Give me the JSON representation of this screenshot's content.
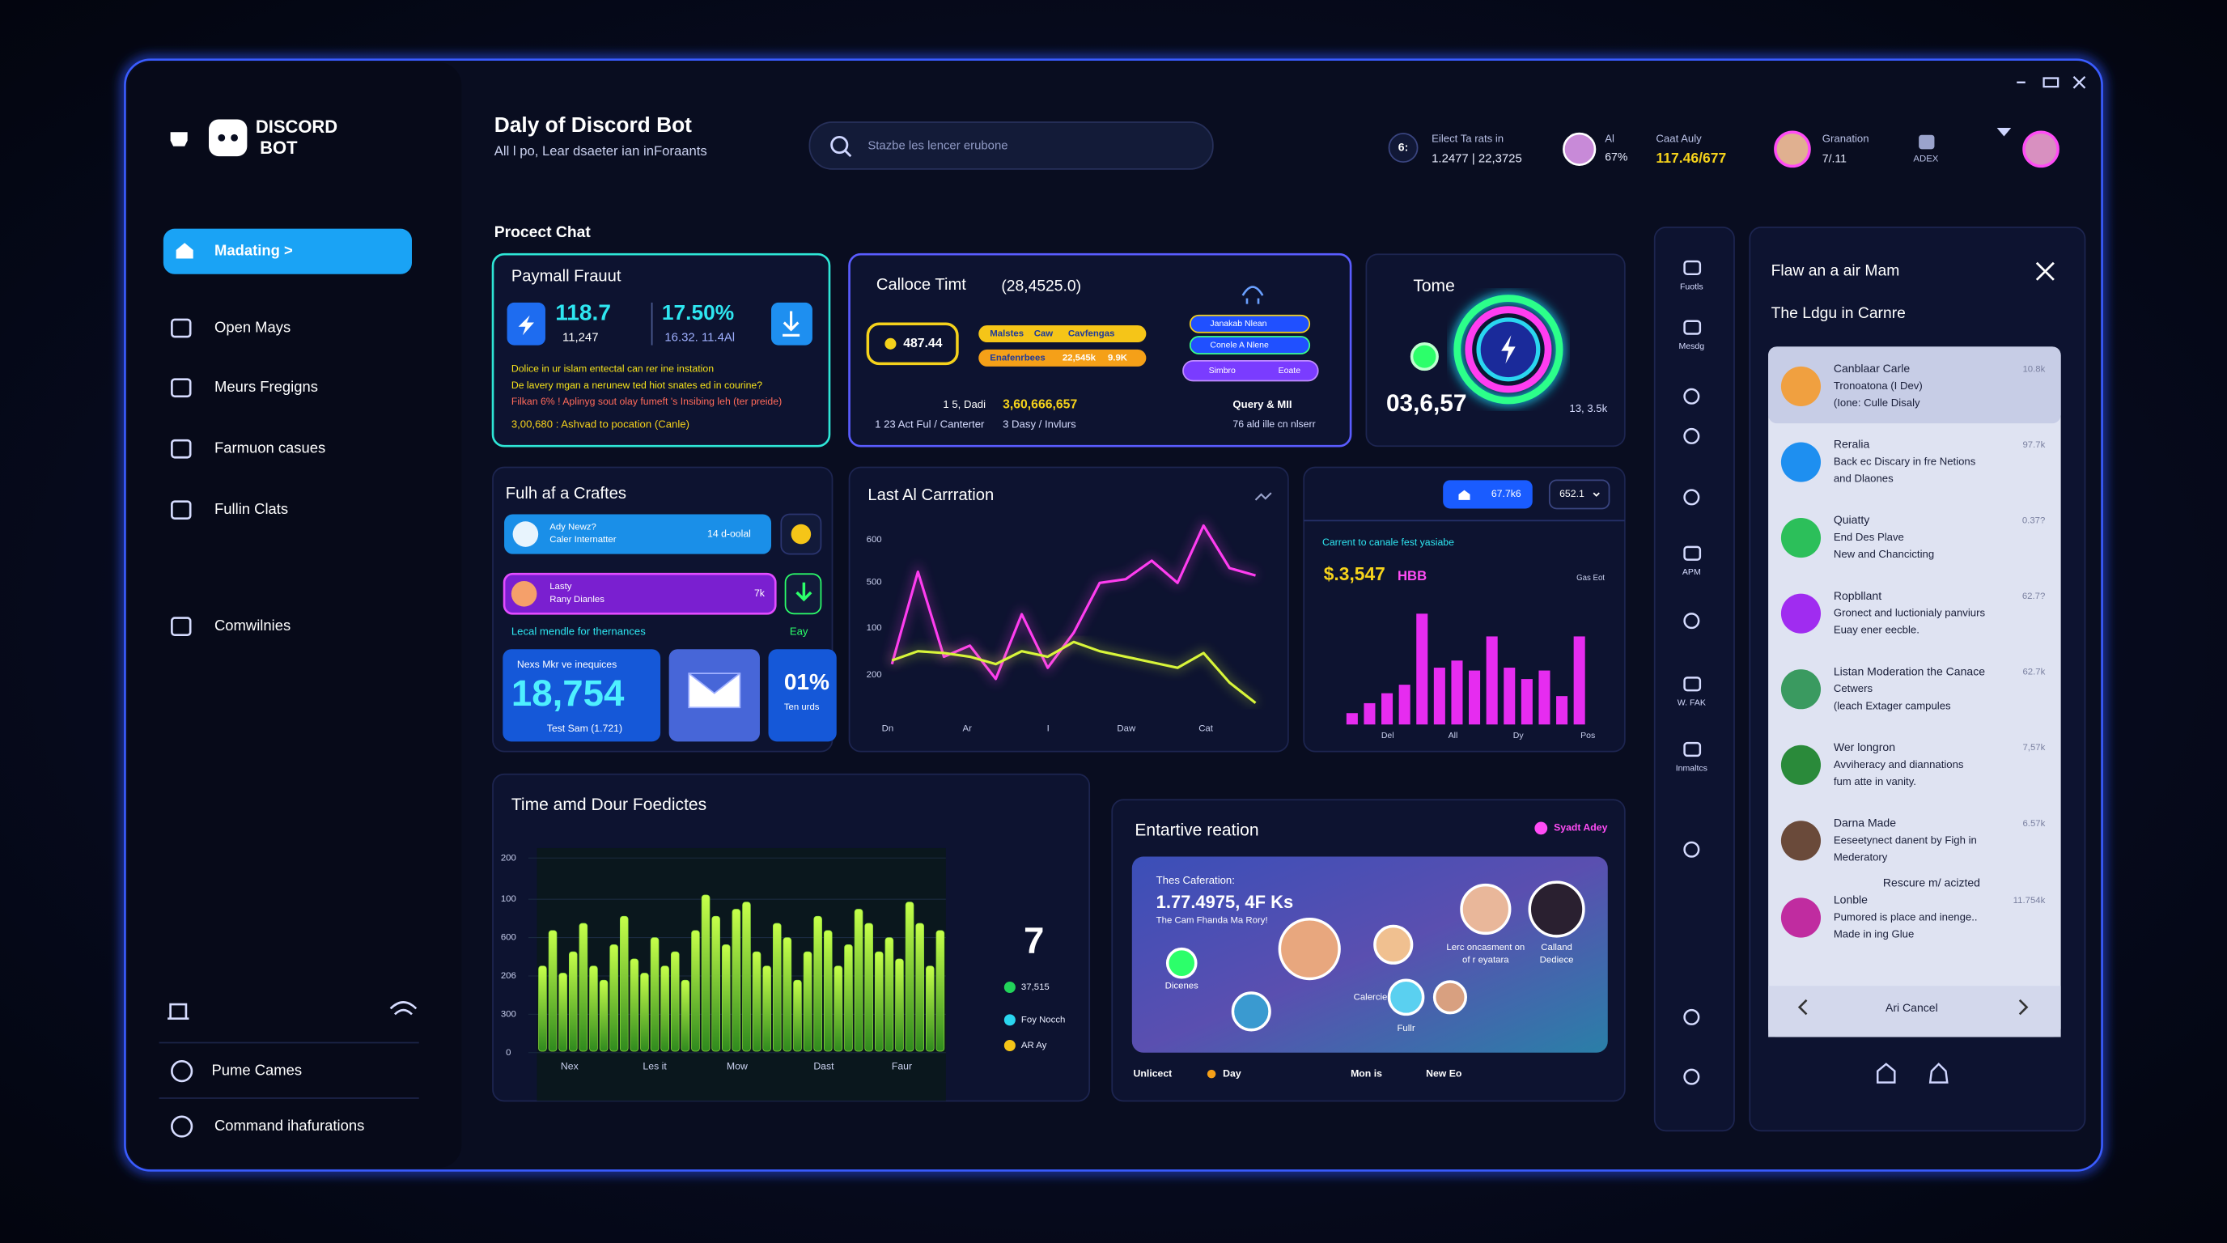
{
  "brand": {
    "line1": "DISCORD",
    "line2": "BOT"
  },
  "header": {
    "title": "Daly of Discord Bot",
    "subtitle": "All l po, Lear dsaeter ian inForaants",
    "search": "Stazbe les lencer erubone",
    "stats": [
      {
        "icon": "6:",
        "label": "Eilect Ta rats in",
        "value": "1.2477 | 22,3725"
      },
      {
        "label": "Al",
        "value": "67%"
      },
      {
        "label": "Caat Auly",
        "value": "117.46/677"
      },
      {
        "label": "Granation",
        "value": "7/.11"
      },
      {
        "label": "ADEX"
      }
    ]
  },
  "nav": {
    "items": [
      "Madating >",
      "Open Mays",
      "Meurs Fregigns",
      "Farmuon casues",
      "Fullin Clats",
      "Comwilnies"
    ],
    "footer": [
      "Pume Cames",
      "Command ihafurations"
    ]
  },
  "section": "Procect Chat",
  "payment_card": {
    "title": "Paymall Frauut",
    "metric1": "118.7",
    "metric1_sub": "11,247",
    "metric2": "17.50%",
    "metric2_sub": "16.32. 11.4Al",
    "lines": [
      "Dolice in ur islam entectal can rer ine instation",
      "De lavery mgan a nerunew ted hiot snates ed in courine?",
      "Filkan 6% ! Aplinyg sout olay fumeft 's Insibing leh (ter preide)"
    ],
    "footnote": "3,00,680 : Ashvad to pocation (Canle)"
  },
  "time_card": {
    "title": "Calloce Timt",
    "value": "(28,4525.0)",
    "pill": "487.44",
    "pills": [
      "Malstes",
      "Caw",
      "Cavfengas",
      "Enafenrbees",
      "22,545k",
      "9.9K"
    ],
    "right_pills": [
      "Janakab Nlean",
      "Conele A Nlene",
      "Simbro",
      "Eoate"
    ],
    "mid": "1 5, Dadi",
    "big": "3,60,666,657",
    "foot1": "1 23 Act Ful / Canterter",
    "foot2": "3 Dasy / Invlurs",
    "query": "Query & MII",
    "query_sub": "76 ald ille cn nlserr"
  },
  "tome_card": {
    "title": "Tome",
    "value": "03,6,57",
    "sub": "13, 3.5k"
  },
  "craft_card": {
    "title": "Fulh af a Craftes",
    "rows": [
      {
        "title": "Ady Newz?",
        "sub": "Caler Internatter",
        "value": "14 d-oolal"
      },
      {
        "title": "Lasty",
        "sub": "Rany Dianles",
        "value": "7k"
      }
    ],
    "caption": "Lecal mendle for thernances",
    "caption_right": "Eay",
    "box_label": "Nexs Mkr ve inequices",
    "box_value": "18,754",
    "box_sub": "Test Sam (1.721)",
    "small_value": "01%",
    "small_sub": "Ten urds"
  },
  "line_chart": {
    "type": "line",
    "title": "Last Al Carrration",
    "y_labels": [
      "600",
      "500",
      "100",
      "200"
    ],
    "x_labels": [
      "Dn",
      "Ar",
      "I",
      "Daw",
      "Cat"
    ],
    "ylim": [
      0,
      100
    ],
    "series": [
      {
        "color": "#ff3df0",
        "values": [
          25,
          75,
          29,
          35,
          17,
          52,
          23,
          42,
          69,
          71,
          81,
          69,
          100,
          77,
          73
        ]
      },
      {
        "color": "#d8f53a",
        "values": [
          27,
          32,
          31,
          29,
          25,
          32,
          29,
          37,
          32,
          29,
          26,
          23,
          31,
          15,
          4
        ]
      }
    ]
  },
  "bar_chart": {
    "type": "bar",
    "pill1": "67.7k6",
    "pill2": "652.1",
    "kpi_label": "Carrent to canale fest yasiabe",
    "kpi": "$.3,547",
    "kpi_unit": "HBB",
    "note": "Gas Eot",
    "x_labels": [
      "Del",
      "All",
      "Dy",
      "Pos"
    ],
    "ylim": [
      0,
      80
    ],
    "color": "#e62cf0",
    "values": [
      8,
      15,
      22,
      28,
      78,
      40,
      45,
      38,
      62,
      40,
      32,
      38,
      20,
      62
    ]
  },
  "forecast_chart": {
    "type": "bar",
    "title": "Time amd Dour Foedictes",
    "y_labels": [
      "200",
      "100",
      "600",
      "206",
      "300",
      "0"
    ],
    "x_labels": [
      "Nex",
      "Les it",
      "Mow",
      "Dast",
      "Faur"
    ],
    "ylim": [
      0,
      145
    ],
    "color": "#8de03a",
    "values": [
      60,
      85,
      55,
      70,
      90,
      60,
      50,
      75,
      95,
      65,
      55,
      80,
      60,
      70,
      50,
      85,
      110,
      95,
      75,
      100,
      105,
      70,
      60,
      90,
      80,
      50,
      70,
      95,
      85,
      60,
      75,
      100,
      90,
      70,
      80,
      65,
      105,
      90,
      60,
      85
    ],
    "big": "7",
    "legend": [
      {
        "label": "37,515",
        "color": "#22d35a"
      },
      {
        "label": "Foy Nocch",
        "color": "#2ad6f0"
      },
      {
        "label": "AR Ay",
        "color": "#f5c518"
      }
    ]
  },
  "entertain_card": {
    "title": "Entartive reation",
    "tag": "Syadt Adey",
    "line1": "Thes Caferation:",
    "big": "1.77.4975, 4F Ks",
    "line2": "The Cam Fhanda Ma Rory!",
    "labels": [
      "Dicenes",
      "Calercie",
      "Fullr",
      "Lerc oncasment on",
      "of r eyatara",
      "Calland",
      "Dediece"
    ],
    "footer": [
      "Unlicect",
      "Day",
      "Mon is",
      "New Eo"
    ]
  },
  "tools": [
    "Fuotls",
    "Mesdg",
    "APM",
    "W. FAK",
    "Inmaltcs"
  ],
  "panel": {
    "title": "Flaw an a air Mam",
    "subtitle": "The Ldgu in Carnre",
    "items": [
      {
        "name": "Canblaar Carle",
        "line1": "Tronoatona (I Dev)",
        "line2": "(Ione: Culle Disaly",
        "stat": "10.8k"
      },
      {
        "name": "Reralia",
        "line1": "Back ec Discary in fre Netions",
        "line2": "and Dlaones",
        "stat": "97.7k"
      },
      {
        "name": "Quiatty",
        "line1": "End Des Plave",
        "line2": "New and Chancicting",
        "stat": "0.37?"
      },
      {
        "name": "Ropbllant",
        "line1": "Gronect and luctionialy panviurs",
        "line2": "Euay ener eecble.",
        "stat": "62.7?"
      },
      {
        "name": "Listan Moderation the Canace",
        "line1": "Cetwers",
        "line2": "(leach Extager campules",
        "stat": "62.7k"
      },
      {
        "name": "Wer longron",
        "line1": "Avviheracy and diannations",
        "line2": "fum atte in vanity.",
        "stat": "7,57k"
      },
      {
        "name": "Darna Made",
        "line1": "Eeseetynect danent by Figh in",
        "line2": "Mederatory",
        "stat": "6.57k"
      },
      {
        "name": "Lonble",
        "line1": "Pumored is place and inenge..",
        "line2": "Made in ing Glue",
        "stat": "11.754k"
      }
    ],
    "divider": "Rescure m/ acizted",
    "footer": "Ari Cancel"
  }
}
